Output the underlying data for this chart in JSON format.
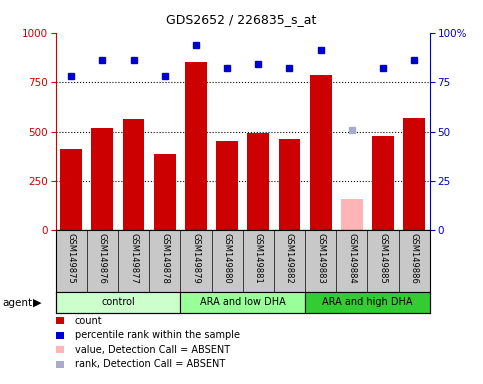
{
  "title": "GDS2652 / 226835_s_at",
  "samples": [
    "GSM149875",
    "GSM149876",
    "GSM149877",
    "GSM149878",
    "GSM149879",
    "GSM149880",
    "GSM149881",
    "GSM149882",
    "GSM149883",
    "GSM149884",
    "GSM149885",
    "GSM149886"
  ],
  "bar_values": [
    410,
    520,
    565,
    385,
    850,
    450,
    495,
    460,
    785,
    160,
    475,
    570
  ],
  "bar_colors": [
    "#cc0000",
    "#cc0000",
    "#cc0000",
    "#cc0000",
    "#cc0000",
    "#cc0000",
    "#cc0000",
    "#cc0000",
    "#cc0000",
    "#ffb5b5",
    "#cc0000",
    "#cc0000"
  ],
  "dot_values": [
    78,
    86,
    86,
    78,
    94,
    82,
    84,
    82,
    91,
    51,
    82,
    86
  ],
  "dot_absent": [
    false,
    false,
    false,
    false,
    false,
    false,
    false,
    false,
    false,
    true,
    false,
    false
  ],
  "ylim_left": [
    0,
    1000
  ],
  "ylim_right": [
    0,
    100
  ],
  "yticks_left": [
    0,
    250,
    500,
    750,
    1000
  ],
  "yticks_right": [
    0,
    25,
    50,
    75,
    100
  ],
  "groups": [
    {
      "label": "control",
      "start": 0,
      "end": 3,
      "color": "#ccffcc"
    },
    {
      "label": "ARA and low DHA",
      "start": 4,
      "end": 7,
      "color": "#99ff99"
    },
    {
      "label": "ARA and high DHA",
      "start": 8,
      "end": 11,
      "color": "#33cc33"
    }
  ],
  "left_axis_color": "#cc0000",
  "right_axis_color": "#0000cc",
  "background_labels": "#c8c8c8",
  "legend_items": [
    {
      "label": "count",
      "color": "#cc0000"
    },
    {
      "label": "percentile rank within the sample",
      "color": "#0000cc"
    },
    {
      "label": "value, Detection Call = ABSENT",
      "color": "#ffb5b5"
    },
    {
      "label": "rank, Detection Call = ABSENT",
      "color": "#aaaacc"
    }
  ],
  "dot_absent_rank_color": "#aaaacc",
  "dot_present_color": "#0000cc"
}
